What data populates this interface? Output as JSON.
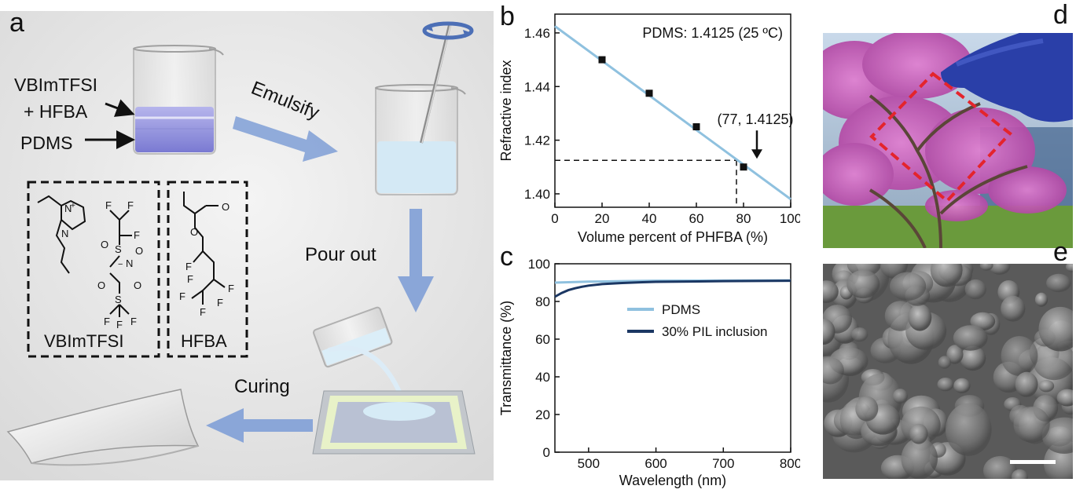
{
  "panels": {
    "a": {
      "letter": "a",
      "labels": {
        "vbim": "VBImTFSI",
        "hfba_plus": "+ HFBA",
        "pdms": "PDMS",
        "emulsify": "Emulsify",
        "pour_out": "Pour out",
        "curing": "Curing",
        "box1": "VBImTFSI",
        "box2": "HFBA"
      },
      "chem": {
        "F": "F",
        "N": "N",
        "O": "O",
        "S": "S",
        "plus": "+",
        "minus": "−",
        "Ntop": "N"
      }
    },
    "b": {
      "letter": "b",
      "chart_data": {
        "type": "scatter",
        "annotation": "PDMS: 1.4125 (25 ºC)",
        "point_label": "(77, 1.4125)",
        "xlabel": "Volume percent of PHFBA (%)",
        "ylabel": "Refractive index",
        "xlim": [
          0,
          100
        ],
        "ylim": [
          1.395,
          1.467
        ],
        "xticks": [
          "0",
          "20",
          "40",
          "60",
          "80",
          "100"
        ],
        "yticks": [
          "1.40",
          "1.42",
          "1.44",
          "1.46"
        ],
        "points": [
          {
            "x": 20,
            "y": 1.45
          },
          {
            "x": 40,
            "y": 1.4375
          },
          {
            "x": 60,
            "y": 1.425
          },
          {
            "x": 80,
            "y": 1.41
          }
        ],
        "fit": {
          "x": [
            0,
            100
          ],
          "y": [
            1.4625,
            1.398
          ]
        },
        "marker": {
          "x": 77,
          "y": 1.4125
        },
        "fit_color": "#8fc1df"
      }
    },
    "c": {
      "letter": "c",
      "chart_data": {
        "type": "line",
        "xlabel": "Wavelength (nm)",
        "ylabel": "Transmittance (%)",
        "xlim": [
          450,
          800
        ],
        "ylim": [
          0,
          100
        ],
        "xticks": [
          "500",
          "600",
          "700",
          "800"
        ],
        "yticks": [
          "0",
          "20",
          "40",
          "60",
          "80",
          "100"
        ],
        "legend": [
          "PDMS",
          "30% PIL inclusion"
        ],
        "series": [
          {
            "name": "PDMS",
            "color": "#8fc1df",
            "x": [
              450,
              480,
              500,
              550,
              600,
              700,
              800
            ],
            "y": [
              90.0,
              90.3,
              90.5,
              90.8,
              91.0,
              91.1,
              91.2
            ]
          },
          {
            "name": "30% PIL inclusion",
            "color": "#1b3763",
            "x": [
              450,
              460,
              470,
              480,
              490,
              500,
              520,
              550,
              580,
              600,
              650,
              700,
              800
            ],
            "y": [
              82.5,
              84.5,
              86.0,
              87.0,
              87.8,
              88.4,
              89.2,
              89.8,
              90.2,
              90.4,
              90.6,
              90.8,
              91.0
            ]
          }
        ]
      }
    },
    "d": {
      "letter": "d"
    },
    "e": {
      "letter": "e"
    }
  },
  "colors": {
    "arrow": "#8aa6d8",
    "liquid_top": "#a7a6e6",
    "liquid_bottom": "#7f7fd6",
    "emulsion": "#d8ebf6",
    "bg_panel_a": "#e6e6e6"
  }
}
